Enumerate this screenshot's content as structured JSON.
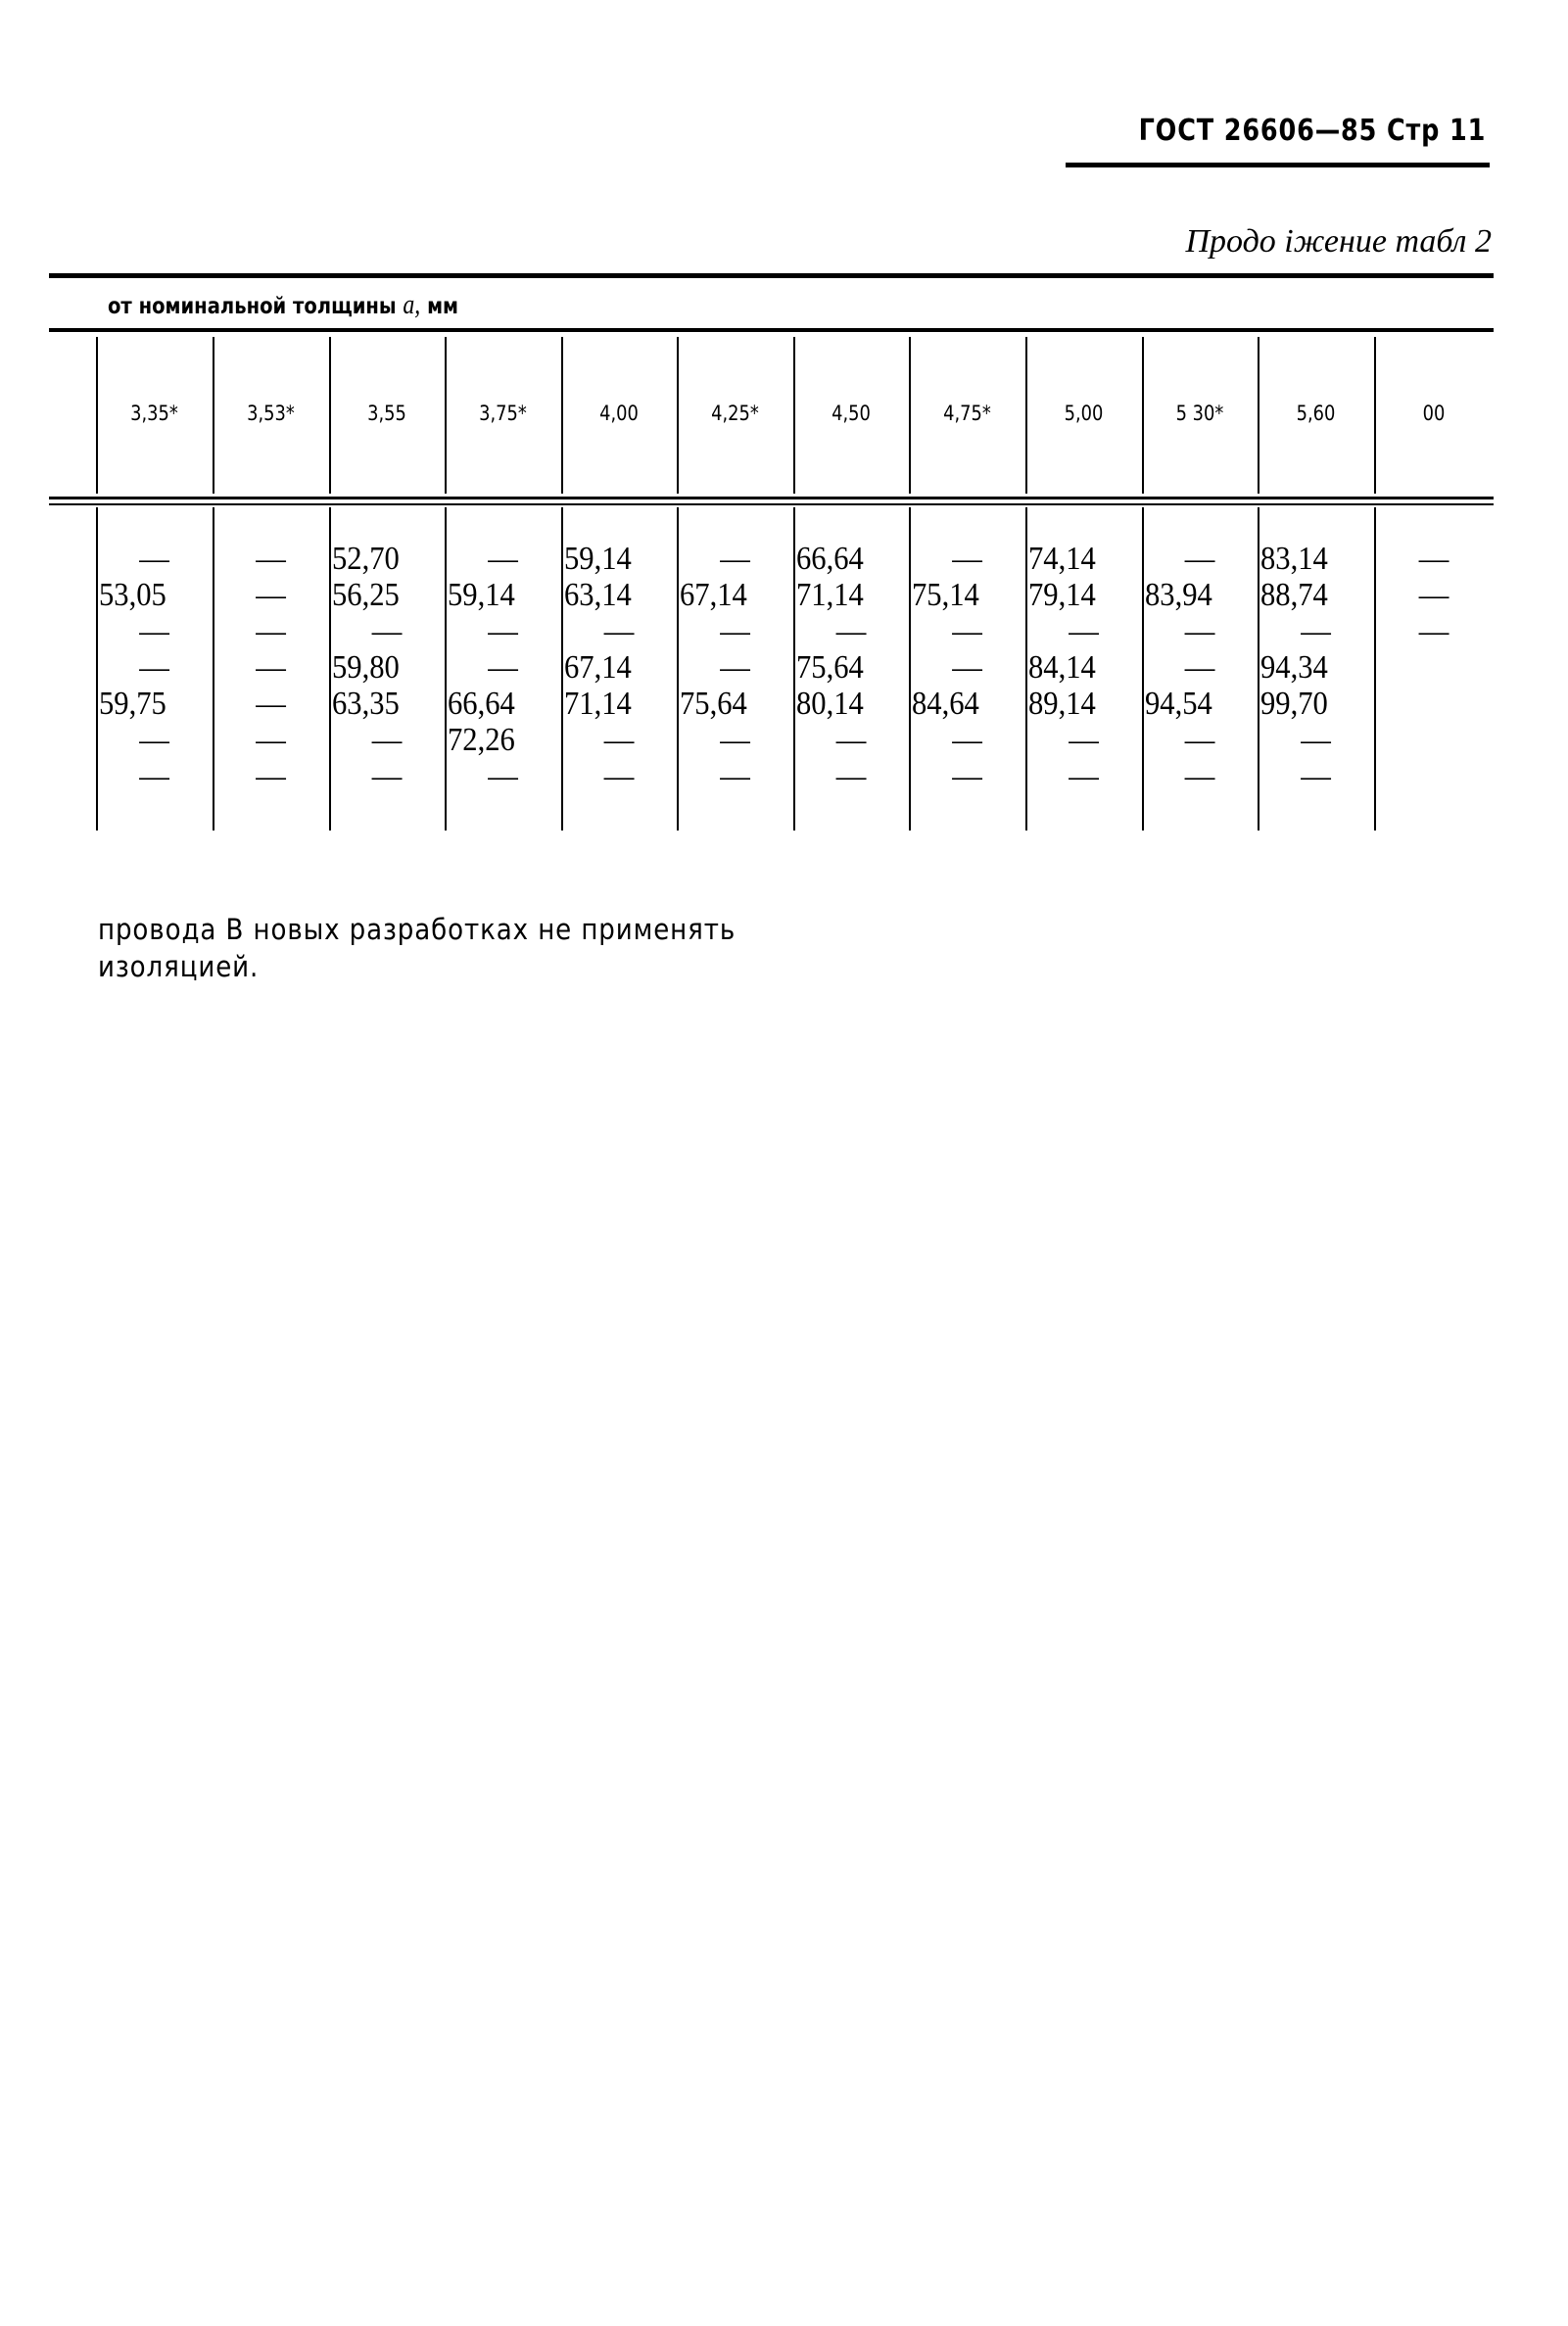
{
  "header": {
    "title": "ГОСТ 26606—85 Стр 11"
  },
  "continuation": "Продо іжение табл 2",
  "table": {
    "subheader": "от номинальной толщины",
    "subheader_symbol": "a,",
    "subheader_unit": "мм",
    "columns": [
      "3,35*",
      "3,53*",
      "3,55",
      "3,75*",
      "4,00",
      "4,25*",
      "4,50",
      "4,75*",
      "5,00",
      "5 30*",
      "5,60",
      "00"
    ],
    "rows": [
      [
        "—",
        "—",
        "52,70",
        "—",
        "59,14",
        "—",
        "66,64",
        "—",
        "74,14",
        "—",
        "83,14",
        "—"
      ],
      [
        "53,05",
        "—",
        "56,25",
        "59,14",
        "63,14",
        "67,14",
        "71,14",
        "75,14",
        "79,14",
        "83,94",
        "88,74",
        "—"
      ],
      [
        "—",
        "—",
        "—",
        "—",
        "—",
        "—",
        "—",
        "—",
        "—",
        "—",
        "—",
        "—"
      ],
      [
        "—",
        "—",
        "59,80",
        "—",
        "67,14",
        "—",
        "75,64",
        "—",
        "84,14",
        "—",
        "94,34",
        ""
      ],
      [
        "59,75",
        "—",
        "63,35",
        "66,64",
        "71,14",
        "75,64",
        "80,14",
        "84,64",
        "89,14",
        "94,54",
        "99,70",
        ""
      ],
      [
        "—",
        "—",
        "—",
        "72,26",
        "—",
        "—",
        "—",
        "—",
        "—",
        "—",
        "—",
        ""
      ],
      [
        "—",
        "—",
        "—",
        "—",
        "—",
        "—",
        "—",
        "—",
        "—",
        "—",
        "—",
        ""
      ]
    ]
  },
  "footer": {
    "line1": "провода В новых разработках не применять",
    "line2": "изоляцией."
  }
}
